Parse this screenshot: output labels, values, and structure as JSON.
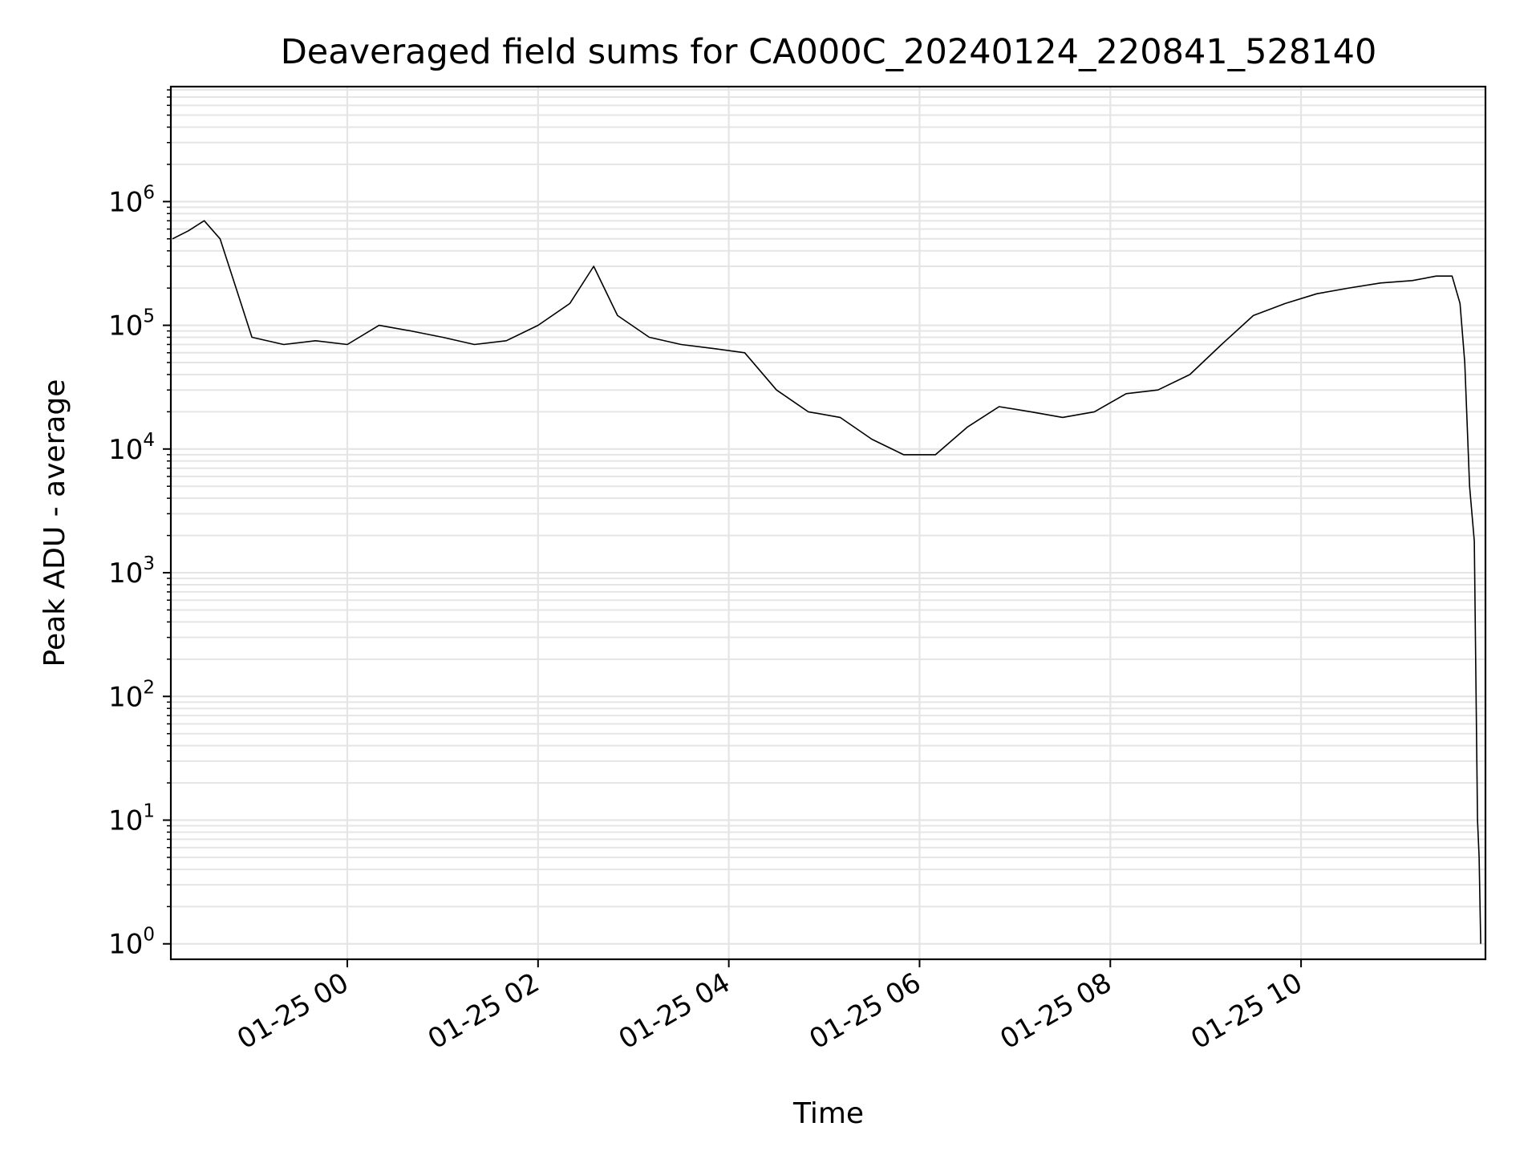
{
  "chart_data": {
    "type": "line",
    "title": "Deaveraged field sums for CA000C_20240124_220841_528140",
    "xlabel": "Time",
    "ylabel": "Peak ADU - average",
    "yscale": "log",
    "ylim": [
      0.75,
      8500000
    ],
    "xlim": [
      "01-24 22:09",
      "01-25 11:56"
    ],
    "x_tick_labels": [
      "01-25 00",
      "01-25 02",
      "01-25 04",
      "01-25 06",
      "01-25 08",
      "01-25 10"
    ],
    "y_tick_labels": [
      {
        "base": "10",
        "exp": "0"
      },
      {
        "base": "10",
        "exp": "1"
      },
      {
        "base": "10",
        "exp": "2"
      },
      {
        "base": "10",
        "exp": "3"
      },
      {
        "base": "10",
        "exp": "4"
      },
      {
        "base": "10",
        "exp": "5"
      },
      {
        "base": "10",
        "exp": "6"
      }
    ],
    "grid": true,
    "line_color": "#000000",
    "grid_color": "#e5e5e5",
    "series": [
      {
        "x": [
          "01-24 22:10",
          "01-24 22:20",
          "01-24 22:30",
          "01-24 22:40",
          "01-24 22:50",
          "01-24 23:00",
          "01-24 23:20",
          "01-24 23:40",
          "01-25 00:00",
          "01-25 00:20",
          "01-25 00:40",
          "01-25 01:00",
          "01-25 01:20",
          "01-25 01:40",
          "01-25 02:00",
          "01-25 02:20",
          "01-25 02:35",
          "01-25 02:50",
          "01-25 03:10",
          "01-25 03:30",
          "01-25 03:50",
          "01-25 04:10",
          "01-25 04:30",
          "01-25 04:50",
          "01-25 05:10",
          "01-25 05:30",
          "01-25 05:50",
          "01-25 06:10",
          "01-25 06:30",
          "01-25 06:50",
          "01-25 07:10",
          "01-25 07:30",
          "01-25 07:50",
          "01-25 08:10",
          "01-25 08:30",
          "01-25 08:50",
          "01-25 09:10",
          "01-25 09:30",
          "01-25 09:50",
          "01-25 10:10",
          "01-25 10:30",
          "01-25 10:50",
          "01-25 11:10",
          "01-25 11:25",
          "01-25 11:35",
          "01-25 11:40",
          "01-25 11:43",
          "01-25 11:46",
          "01-25 11:49",
          "01-25 11:51",
          "01-25 11:52",
          "01-25 11:53"
        ],
        "values": [
          500000,
          580000,
          700000,
          500000,
          200000,
          80000,
          70000,
          75000,
          70000,
          100000,
          90000,
          80000,
          70000,
          75000,
          100000,
          150000,
          300000,
          120000,
          80000,
          70000,
          65000,
          60000,
          30000,
          20000,
          18000,
          12000,
          9000,
          9000,
          15000,
          22000,
          20000,
          18000,
          20000,
          28000,
          30000,
          40000,
          70000,
          120000,
          150000,
          180000,
          200000,
          220000,
          230000,
          250000,
          250000,
          150000,
          50000,
          5000,
          1800,
          10,
          5,
          1
        ]
      }
    ]
  }
}
